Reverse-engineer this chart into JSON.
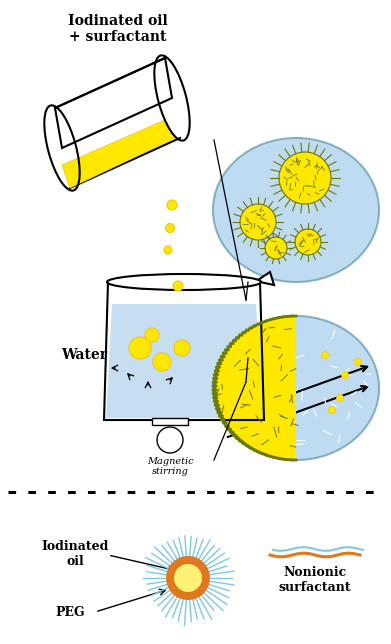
{
  "bg_color": "#ffffff",
  "title_text": "Iodinated oil\n+ surfactant",
  "water_label": "Water",
  "mag_stir_label": "Magnetic\nstirring",
  "iodinated_oil_label": "Iodinated\noil",
  "peg_label": "PEG",
  "nonionic_label": "Nonionic\nsurfactant",
  "yellow": "#FFE800",
  "yellow2": "#F5C400",
  "olive": "#6B7A00",
  "blue_light": "#B8D8F0",
  "blue_water": "#A8CDE8",
  "orange": "#E07820",
  "light_blue_ray": "#7EC8E3",
  "white": "#ffffff",
  "black": "#000000"
}
